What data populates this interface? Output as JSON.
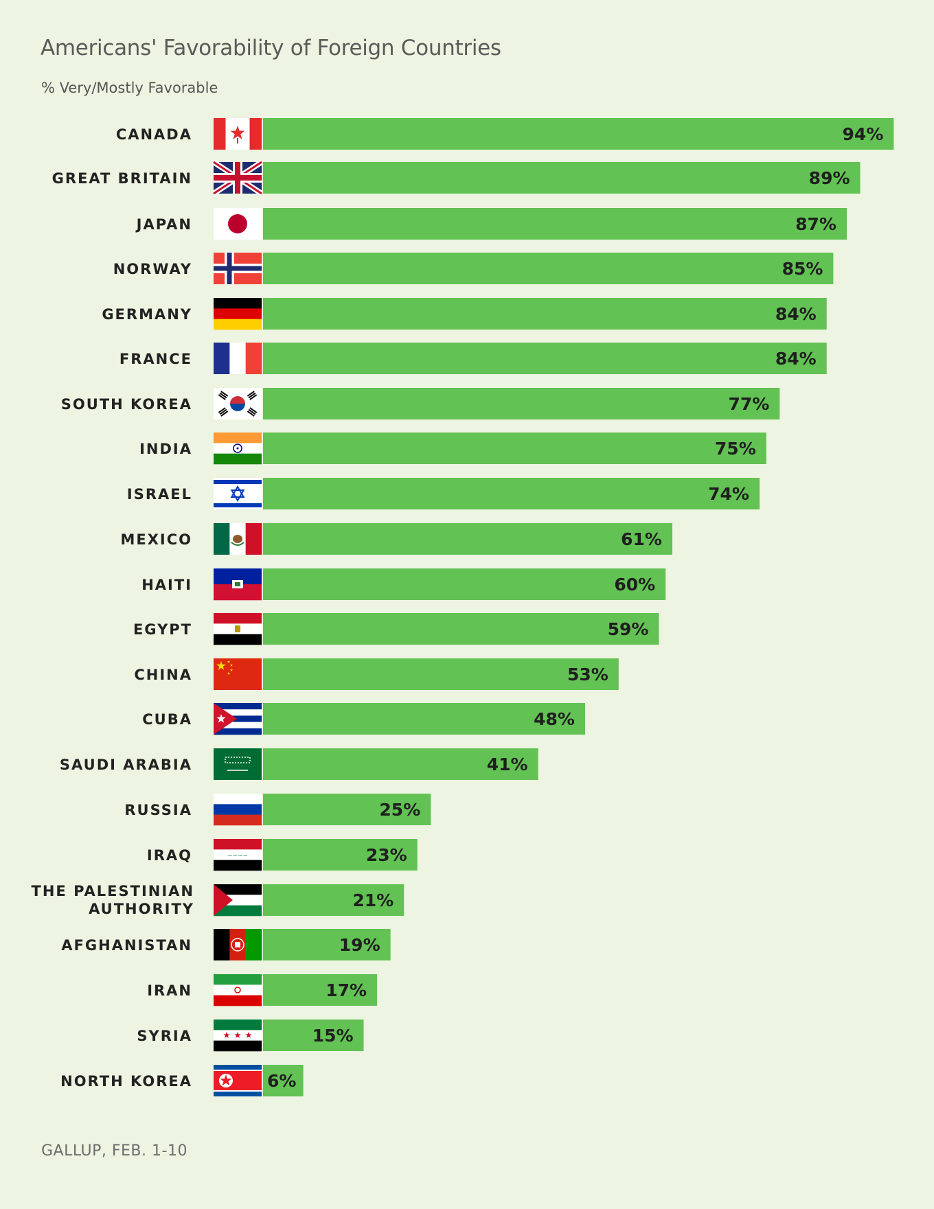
{
  "chart_data": {
    "type": "bar",
    "orientation": "horizontal",
    "title": "Americans' Favorability of Foreign Countries",
    "subtitle": "% Very/Mostly Favorable",
    "source": "GALLUP, FEB. 1-10",
    "categories": [
      "CANADA",
      "GREAT BRITAIN",
      "JAPAN",
      "NORWAY",
      "GERMANY",
      "FRANCE",
      "SOUTH KOREA",
      "INDIA",
      "ISRAEL",
      "MEXICO",
      "HAITI",
      "EGYPT",
      "CHINA",
      "CUBA",
      "SAUDI ARABIA",
      "RUSSIA",
      "IRAQ",
      "THE PALESTINIAN AUTHORITY",
      "AFGHANISTAN",
      "IRAN",
      "SYRIA",
      "NORTH KOREA"
    ],
    "category_lines": [
      [
        "CANADA"
      ],
      [
        "GREAT BRITAIN"
      ],
      [
        "JAPAN"
      ],
      [
        "NORWAY"
      ],
      [
        "GERMANY"
      ],
      [
        "FRANCE"
      ],
      [
        "SOUTH KOREA"
      ],
      [
        "INDIA"
      ],
      [
        "ISRAEL"
      ],
      [
        "MEXICO"
      ],
      [
        "HAITI"
      ],
      [
        "EGYPT"
      ],
      [
        "CHINA"
      ],
      [
        "CUBA"
      ],
      [
        "SAUDI ARABIA"
      ],
      [
        "RUSSIA"
      ],
      [
        "IRAQ"
      ],
      [
        "THE PALESTINIAN",
        "AUTHORITY"
      ],
      [
        "AFGHANISTAN"
      ],
      [
        "IRAN"
      ],
      [
        "SYRIA"
      ],
      [
        "NORTH KOREA"
      ]
    ],
    "values": [
      94,
      89,
      87,
      85,
      84,
      84,
      77,
      75,
      74,
      61,
      60,
      59,
      53,
      48,
      41,
      25,
      23,
      21,
      19,
      17,
      15,
      6
    ],
    "value_labels": [
      "94%",
      "89%",
      "87%",
      "85%",
      "84%",
      "84%",
      "77%",
      "75%",
      "74%",
      "61%",
      "60%",
      "59%",
      "53%",
      "48%",
      "41%",
      "25%",
      "23%",
      "21%",
      "19%",
      "17%",
      "15%",
      "6%"
    ],
    "flag_icons": [
      "canada-flag-icon",
      "great-britain-flag-icon",
      "japan-flag-icon",
      "norway-flag-icon",
      "germany-flag-icon",
      "france-flag-icon",
      "south-korea-flag-icon",
      "india-flag-icon",
      "israel-flag-icon",
      "mexico-flag-icon",
      "haiti-flag-icon",
      "egypt-flag-icon",
      "china-flag-icon",
      "cuba-flag-icon",
      "saudi-arabia-flag-icon",
      "russia-flag-icon",
      "iraq-flag-icon",
      "palestine-flag-icon",
      "afghanistan-flag-icon",
      "iran-flag-icon",
      "syria-flag-icon",
      "north-korea-flag-icon"
    ],
    "xlim": [
      0,
      100
    ],
    "grid": false,
    "legend": "none",
    "colors": {
      "bar": "#62c253",
      "background": "#edf4e1",
      "text": "#222222"
    }
  }
}
